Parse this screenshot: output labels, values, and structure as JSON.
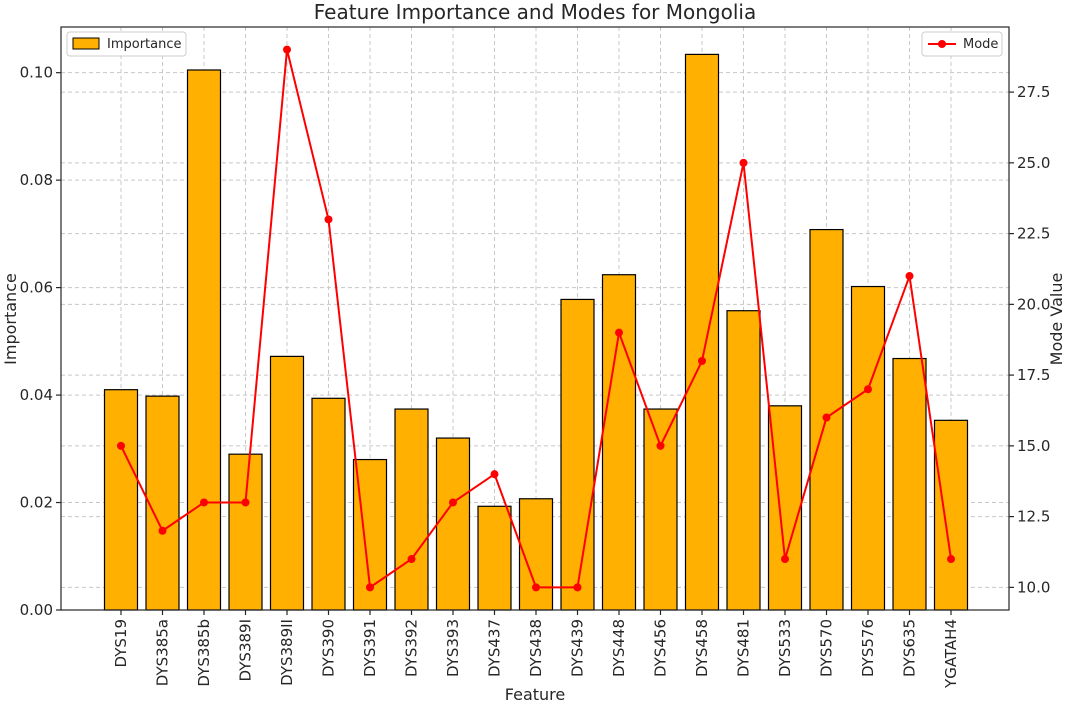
{
  "chart_data": {
    "type": "bar",
    "title": "Feature Importance and Modes for Mongolia",
    "xlabel": "Feature",
    "ylabel": "Importance",
    "y2label": "Mode Value",
    "categories": [
      "DYS19",
      "DYS385a",
      "DYS385b",
      "DYS389I",
      "DYS389II",
      "DYS390",
      "DYS391",
      "DYS392",
      "DYS393",
      "DYS437",
      "DYS438",
      "DYS439",
      "DYS448",
      "DYS456",
      "DYS458",
      "DYS481",
      "DYS533",
      "DYS570",
      "DYS576",
      "DYS635",
      "YGATAH4"
    ],
    "series": [
      {
        "name": "Importance",
        "type": "bar",
        "axis": "left",
        "color": "#ffb000",
        "values": [
          0.041,
          0.0398,
          0.1005,
          0.029,
          0.0472,
          0.0394,
          0.028,
          0.0374,
          0.032,
          0.0193,
          0.0207,
          0.0578,
          0.0624,
          0.0374,
          0.1034,
          0.0557,
          0.038,
          0.0708,
          0.0602,
          0.0468,
          0.0353
        ]
      },
      {
        "name": "Mode",
        "type": "line",
        "axis": "right",
        "color": "#ff0000",
        "values": [
          15,
          12,
          13,
          13,
          29,
          23,
          10,
          11,
          13,
          14,
          10,
          10,
          19,
          15,
          18,
          25,
          11,
          16,
          17,
          21,
          11
        ]
      }
    ],
    "ylim": [
      0,
      0.1085
    ],
    "y_ticks": [
      0.0,
      0.02,
      0.04,
      0.06,
      0.08,
      0.1
    ],
    "y_tick_labels": [
      "0.00",
      "0.02",
      "0.04",
      "0.06",
      "0.08",
      "0.10"
    ],
    "y2lim": [
      9.2,
      29.8
    ],
    "y2_ticks": [
      10.0,
      12.5,
      15.0,
      17.5,
      20.0,
      22.5,
      25.0,
      27.5
    ],
    "y2_tick_labels": [
      "10.0",
      "12.5",
      "15.0",
      "17.5",
      "20.0",
      "22.5",
      "25.0",
      "27.5"
    ],
    "grid": true,
    "legend": [
      {
        "label": "Importance",
        "placement": "top-left"
      },
      {
        "label": "Mode",
        "placement": "top-right"
      }
    ]
  }
}
